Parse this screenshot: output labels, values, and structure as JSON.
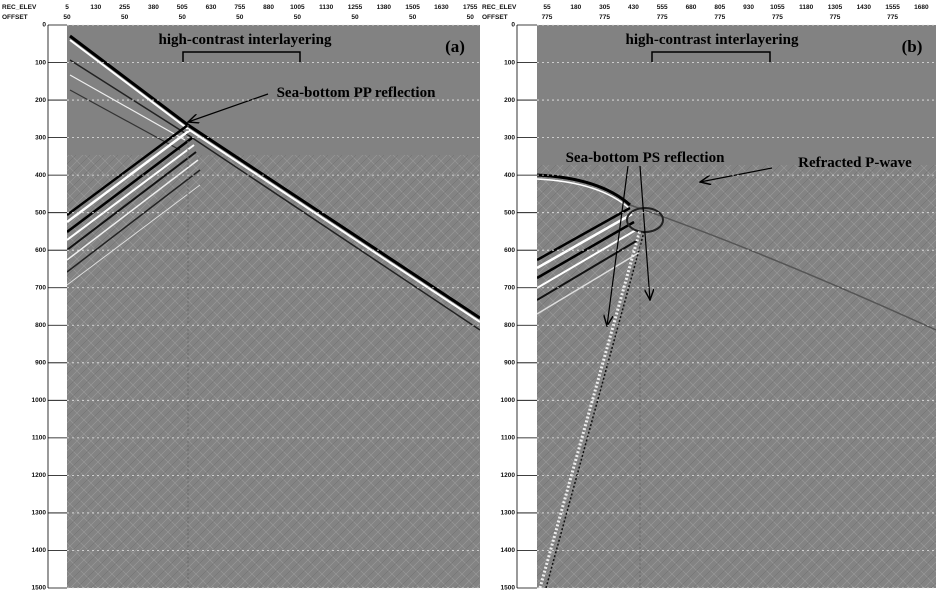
{
  "panels": [
    {
      "label": "(a)",
      "rec_elev_label": "REC_ELEV",
      "offset_label": "OFFSET",
      "rec_elev": [
        "5",
        "130",
        "255",
        "380",
        "505",
        "630",
        "755",
        "880",
        "1005",
        "1130",
        "1255",
        "1380",
        "1505",
        "1630",
        "1755"
      ],
      "offset": [
        "50",
        "50",
        "50",
        "50",
        "50",
        "50",
        "50",
        "50"
      ],
      "y_ticks": [
        "0",
        "100",
        "200",
        "300",
        "400",
        "500",
        "600",
        "700",
        "800",
        "900",
        "1000",
        "1100",
        "1200",
        "1300",
        "1400",
        "1500"
      ],
      "interlayering": "high-contrast interlayering",
      "annotations": [
        "Sea-bottom PP reflection"
      ]
    },
    {
      "label": "(b)",
      "rec_elev_label": "REC_ELEV",
      "offset_label": "OFFSET",
      "rec_elev": [
        "55",
        "180",
        "305",
        "430",
        "555",
        "680",
        "805",
        "930",
        "1055",
        "1180",
        "1305",
        "1430",
        "1555",
        "1680"
      ],
      "offset": [
        "775",
        "775",
        "775",
        "775",
        "775",
        "775",
        "775"
      ],
      "y_ticks": [
        "0",
        "100",
        "200",
        "300",
        "400",
        "500",
        "600",
        "700",
        "800",
        "900",
        "1000",
        "1100",
        "1200",
        "1300",
        "1400",
        "1500"
      ],
      "interlayering": "high-contrast interlayering",
      "annotations": [
        "Sea-bottom PS reflection",
        "Refracted P-wave"
      ]
    }
  ]
}
